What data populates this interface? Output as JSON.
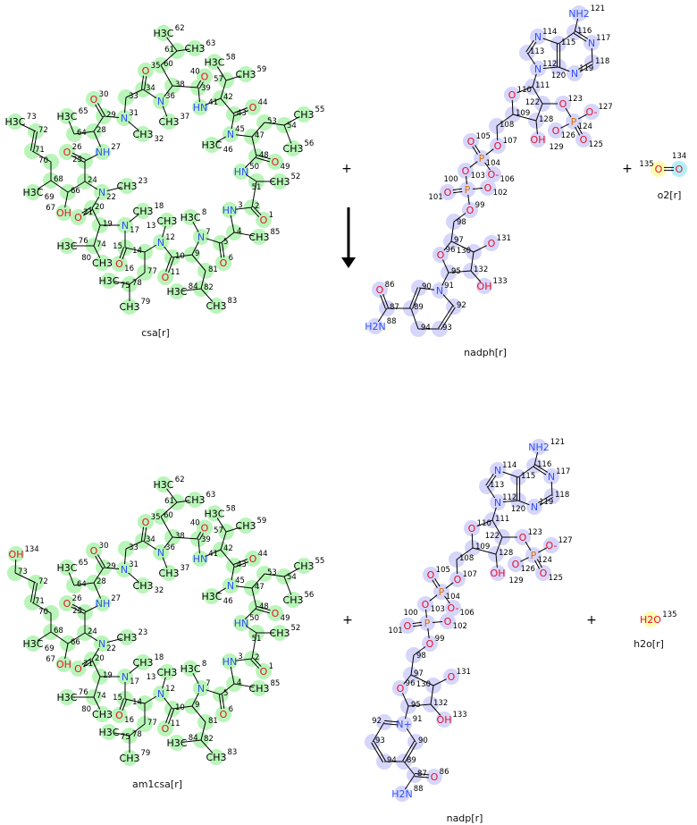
{
  "reaction": {
    "plus_signs": [
      "+",
      "+",
      "+",
      "+"
    ],
    "arrow_direction": "down",
    "molecules": [
      {
        "key": "csa",
        "name": "csa[r]",
        "highlight": "#b9f5b9",
        "atoms": {
          "1": "O",
          "2": "",
          "3": "HN",
          "4": "",
          "5": "",
          "6": "O",
          "7": "N",
          "8": "H3C",
          "9": "",
          "10": "",
          "11": "O",
          "12": "N",
          "13": "CH3",
          "14": "",
          "15": "",
          "16": "O",
          "17": "N",
          "18": "CH3",
          "19": "",
          "20": "",
          "21": "O",
          "22": "N",
          "23": "CH3",
          "24": "",
          "25": "",
          "26": "O",
          "27": "NH",
          "28": "",
          "29": "",
          "30": "O",
          "31": "N",
          "32": "CH3",
          "33": "",
          "34": "",
          "35": "O",
          "36": "N",
          "37": "CH3",
          "38": "",
          "39": "",
          "40": "O",
          "41": "HN",
          "42": "",
          "43": "",
          "44": "O",
          "45": "N",
          "46": "H3C",
          "47": "",
          "48": "",
          "49": "O",
          "50": "HN",
          "51": "",
          "52": "CH3",
          "53": "",
          "54": "",
          "55": "CH3",
          "56": "CH3",
          "57": "",
          "58": "H3C",
          "59": "CH3",
          "60": "",
          "61": "",
          "62": "H3C",
          "63": "CH3",
          "64": "",
          "65": "H3C",
          "66": "",
          "67": "OH",
          "68": "",
          "69": "H3C",
          "70": "",
          "71": "",
          "72": "",
          "73": "H3C",
          "74": "",
          "75": "H3C",
          "76": "H3C",
          "77": "",
          "78": "",
          "79": "CH3",
          "80": "CH3",
          "81": "",
          "82": "",
          "83": "CH3",
          "84": "H3C",
          "85": "CH3"
        }
      },
      {
        "key": "nadph",
        "name": "nadph[r]",
        "highlight": "#d6d6fb",
        "atoms": {
          "86": "O",
          "87": "",
          "88": "H2N",
          "89": "",
          "90": "",
          "91": "N",
          "92": "",
          "93": "",
          "94": "",
          "95": "",
          "96": "O",
          "97": "",
          "98": "",
          "99": "O",
          "100": "P",
          "101": "O",
          "102": "O",
          "103": "O",
          "104": "P",
          "105": "O",
          "106": "O-",
          "107": "O",
          "108": "",
          "109": "",
          "110": "O",
          "111": "",
          "112": "N",
          "113": "",
          "114": "N",
          "115": "",
          "116": "",
          "117": "N",
          "118": "",
          "119": "N",
          "120": "",
          "121": "NH2",
          "122": "",
          "123": "O",
          "124": "P",
          "125": "O",
          "126": "O",
          "127": "O-",
          "128": "",
          "129": "OH",
          "130": "",
          "131": "O",
          "132": "",
          "133": "OH"
        }
      },
      {
        "key": "o2",
        "name": "o2[r]",
        "highlight": "#fcfcb0",
        "highlight_alt": "#b4eef8",
        "atoms": {
          "135": "O",
          "134": "O"
        }
      },
      {
        "key": "am1csa",
        "name": "am1csa[r]",
        "highlight": "#b9f5b9",
        "atoms": {
          "1": "O",
          "2": "",
          "3": "HN",
          "4": "",
          "5": "",
          "6": "O",
          "7": "N",
          "8": "H3C",
          "9": "",
          "10": "",
          "11": "O",
          "12": "N",
          "13": "CH3",
          "14": "",
          "15": "",
          "16": "O",
          "17": "N",
          "18": "CH3",
          "19": "",
          "20": "",
          "21": "O",
          "22": "N",
          "23": "CH3",
          "24": "",
          "25": "",
          "26": "O",
          "27": "NH",
          "28": "",
          "29": "",
          "30": "O",
          "31": "N",
          "32": "CH3",
          "33": "",
          "34": "",
          "35": "O",
          "36": "N",
          "37": "CH3",
          "38": "",
          "39": "",
          "40": "O",
          "41": "HN",
          "42": "",
          "43": "",
          "44": "O",
          "45": "N",
          "46": "H3C",
          "47": "",
          "48": "",
          "49": "O",
          "50": "HN",
          "51": "",
          "52": "CH3",
          "53": "",
          "54": "",
          "55": "CH3",
          "56": "CH3",
          "57": "",
          "58": "H3C",
          "59": "CH3",
          "60": "",
          "61": "",
          "62": "H3C",
          "63": "CH3",
          "64": "",
          "65": "H3C",
          "66": "",
          "67": "OH",
          "68": "",
          "69": "H3C",
          "70": "",
          "71": "",
          "72": "",
          "73": "",
          "74": "",
          "75": "H3C",
          "76": "H3C",
          "77": "",
          "78": "",
          "79": "CH3",
          "80": "CH3",
          "81": "",
          "82": "",
          "83": "CH3",
          "84": "H3C",
          "85": "CH3",
          "134": "OH"
        }
      },
      {
        "key": "nadp",
        "name": "nadp[r]",
        "highlight": "#d6d6fb",
        "atoms": {
          "86": "O",
          "87": "",
          "88": "H2N",
          "89": "",
          "90": "",
          "91": "N+",
          "92": "",
          "93": "",
          "94": "",
          "95": "",
          "96": "O",
          "97": "",
          "98": "",
          "99": "O",
          "100": "P",
          "101": "O",
          "102": "O",
          "103": "O",
          "104": "P",
          "105": "O",
          "106": "O-",
          "107": "O",
          "108": "",
          "109": "",
          "110": "O",
          "111": "",
          "112": "N",
          "113": "",
          "114": "N",
          "115": "",
          "116": "",
          "117": "N",
          "118": "",
          "119": "N",
          "120": "",
          "121": "NH2",
          "122": "",
          "123": "O",
          "124": "P",
          "125": "O",
          "126": "O",
          "127": "O-",
          "128": "",
          "129": "OH",
          "130": "",
          "131": "O",
          "132": "",
          "133": "OH"
        }
      },
      {
        "key": "h2o",
        "name": "h2o[r]",
        "highlight": "#fcfcb0",
        "atoms": {
          "135": "H2O"
        }
      }
    ],
    "element_colors": {
      "O": "#e8102a",
      "N": "#3050f8",
      "P": "#e07000",
      "C": "#000000"
    }
  }
}
